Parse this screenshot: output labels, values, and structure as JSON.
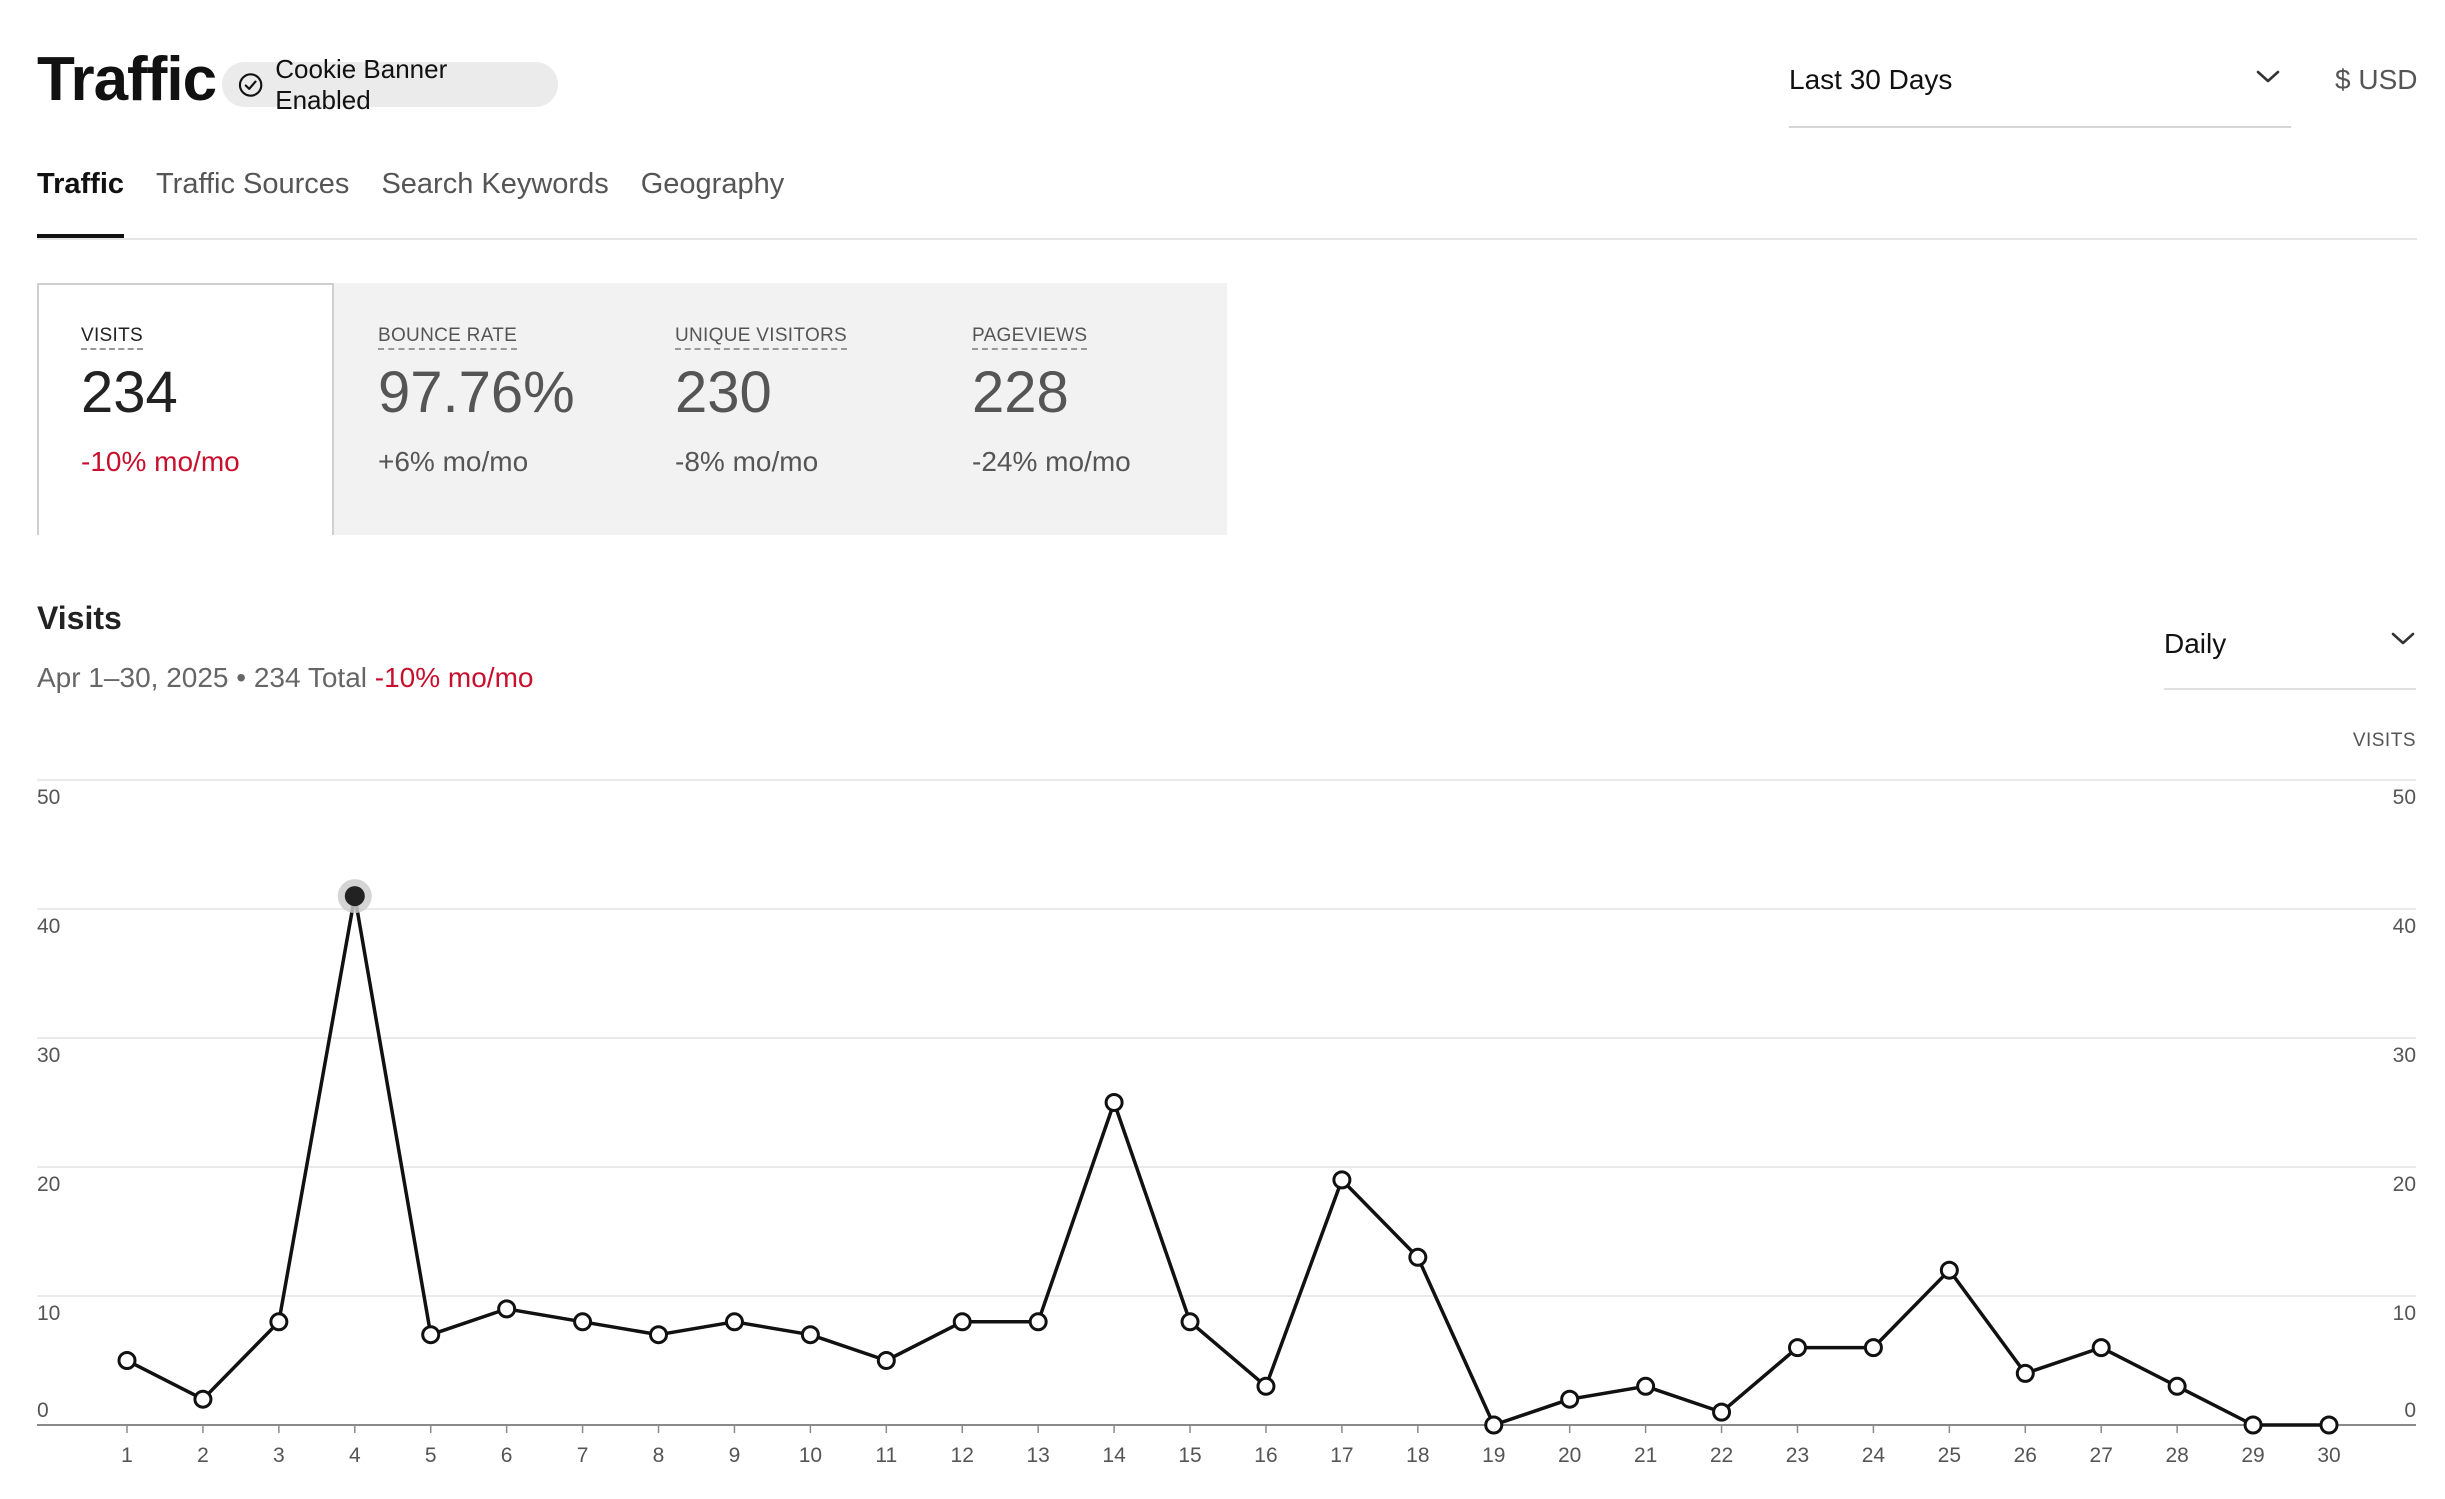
{
  "header": {
    "title": "Traffic",
    "cookie_badge": "Cookie Banner Enabled",
    "range_select": "Last 30 Days",
    "currency": "$ USD"
  },
  "tabs": [
    {
      "label": "Traffic",
      "active": true
    },
    {
      "label": "Traffic Sources",
      "active": false
    },
    {
      "label": "Search Keywords",
      "active": false
    },
    {
      "label": "Geography",
      "active": false
    }
  ],
  "metrics": [
    {
      "label": "VISITS",
      "value": "234",
      "change": "-10% mo/mo",
      "change_negative": true,
      "selected": true
    },
    {
      "label": "BOUNCE RATE",
      "value": "97.76%",
      "change": "+6% mo/mo",
      "change_negative": false,
      "selected": false
    },
    {
      "label": "UNIQUE VISITORS",
      "value": "230",
      "change": "-8% mo/mo",
      "change_negative": false,
      "selected": false
    },
    {
      "label": "PAGEVIEWS",
      "value": "228",
      "change": "-24% mo/mo",
      "change_negative": false,
      "selected": false
    }
  ],
  "visits": {
    "title": "Visits",
    "subtitle": "Apr 1–30, 2025 • 234 Total",
    "change": "-10% mo/mo",
    "period_select": "Daily",
    "axis_caption": "VISITS"
  },
  "colors": {
    "negative": "#c8102e",
    "line": "#111111",
    "grid": "#e3e3e3",
    "highlight_halo": "#cccccc"
  },
  "chart_data": {
    "type": "line",
    "title": "",
    "xlabel": "",
    "ylabel": "VISITS",
    "x": [
      1,
      2,
      3,
      4,
      5,
      6,
      7,
      8,
      9,
      10,
      11,
      12,
      13,
      14,
      15,
      16,
      17,
      18,
      19,
      20,
      21,
      22,
      23,
      24,
      25,
      26,
      27,
      28,
      29,
      30
    ],
    "series": [
      {
        "values": [
          5,
          2,
          8,
          41,
          7,
          9,
          8,
          7,
          8,
          7,
          5,
          8,
          8,
          25,
          8,
          3,
          19,
          13,
          0,
          2,
          3,
          1,
          6,
          6,
          12,
          4,
          6,
          3,
          0,
          0
        ]
      }
    ],
    "ylim": [
      0,
      50
    ],
    "yticks": [
      0,
      10,
      20,
      30,
      40,
      50
    ],
    "highlighted_x": 4,
    "grid": true,
    "y_axis_both_sides": true
  }
}
